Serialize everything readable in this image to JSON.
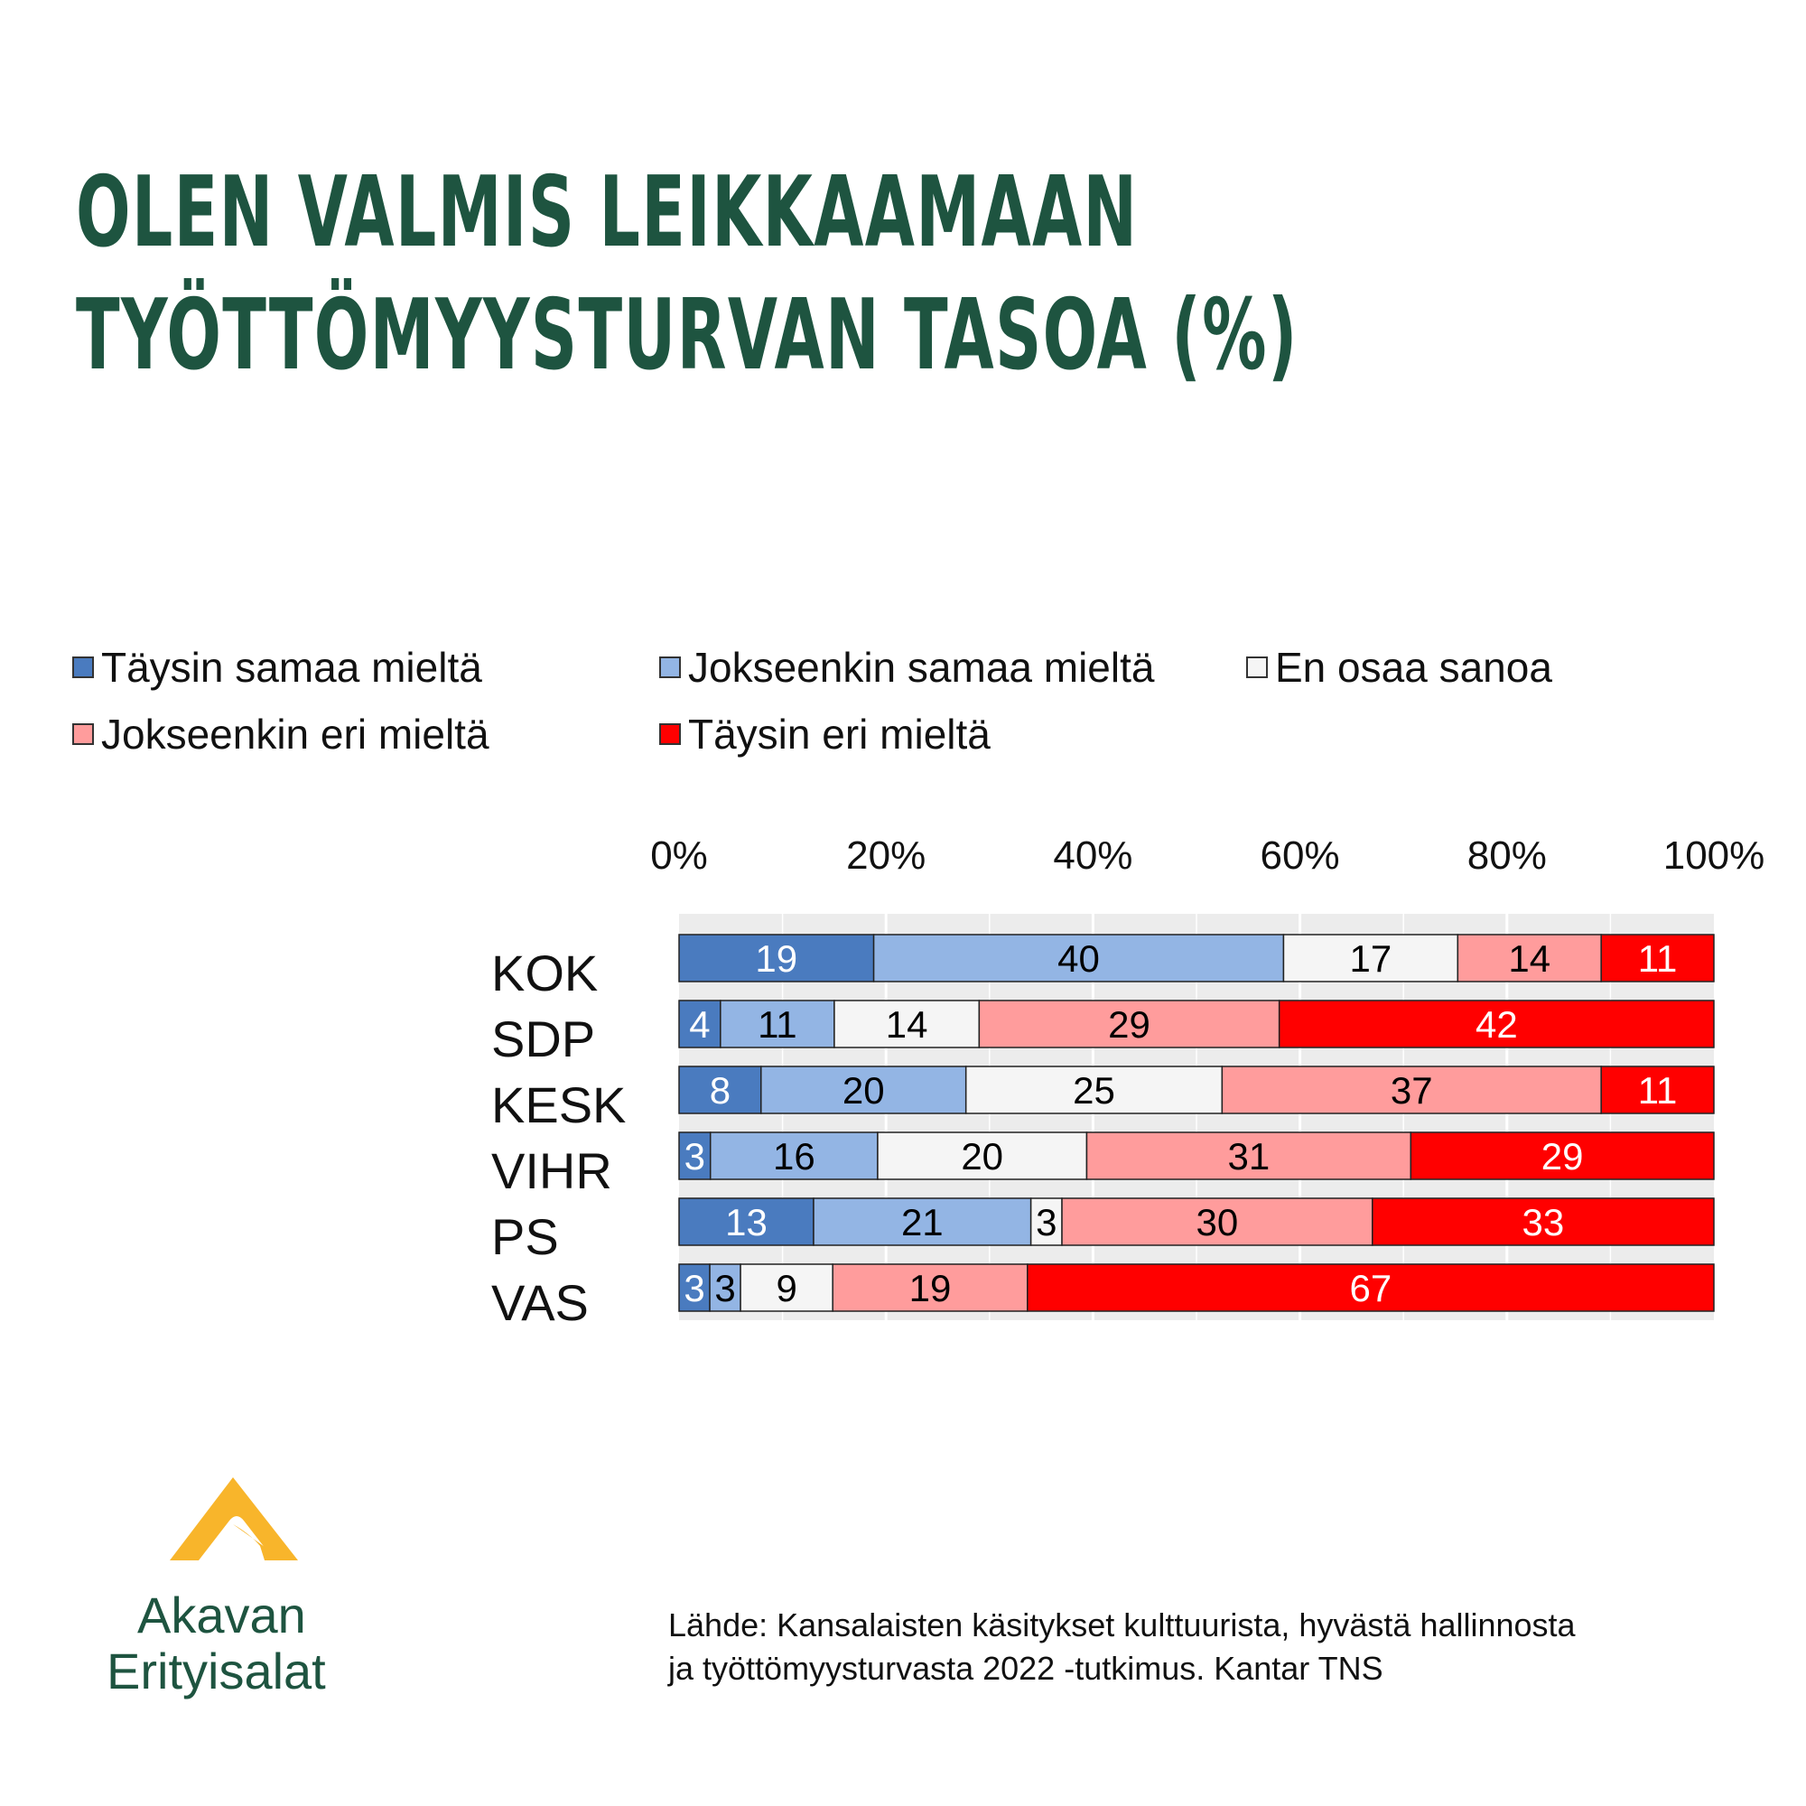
{
  "title": {
    "line1": "OLEN VALMIS LEIKKAAMAAN",
    "line2": "TYÖTTÖMYYSTURVAN TASOA (%)"
  },
  "colors": {
    "title": "#1e5440",
    "taysin_samaa": "#4a7bbf",
    "jokseenkin_samaa": "#93b5e4",
    "en_osaa": "#f5f5f5",
    "jokseenkin_eri": "#ff9c9c",
    "taysin_eri": "#ff0000",
    "logo_mark": "#f8b52b"
  },
  "legend": [
    {
      "label": "Täysin samaa mieltä",
      "color": "#4a7bbf"
    },
    {
      "label": "Jokseenkin samaa mieltä",
      "color": "#93b5e4"
    },
    {
      "label": "En osaa sanoa",
      "color": "#f5f5f5"
    },
    {
      "label": "Jokseenkin eri mieltä",
      "color": "#ff9c9c"
    },
    {
      "label": "Täysin eri mieltä",
      "color": "#ff0000"
    }
  ],
  "chart_data": {
    "type": "bar",
    "orientation": "horizontal",
    "stacked": true,
    "percent_stacked": true,
    "categories": [
      "KOK",
      "SDP",
      "KESK",
      "VIHR",
      "PS",
      "VAS"
    ],
    "series": [
      {
        "name": "Täysin samaa mieltä",
        "values": [
          19,
          4,
          8,
          3,
          13,
          3
        ],
        "label_color": "#ffffff"
      },
      {
        "name": "Jokseenkin samaa mieltä",
        "values": [
          40,
          11,
          20,
          16,
          21,
          3
        ],
        "label_color": "#000000"
      },
      {
        "name": "En osaa sanoa",
        "values": [
          17,
          14,
          25,
          20,
          3,
          9
        ],
        "label_color": "#000000"
      },
      {
        "name": "Jokseenkin eri mieltä",
        "values": [
          14,
          29,
          37,
          31,
          30,
          19
        ],
        "label_color": "#000000"
      },
      {
        "name": "Täysin eri mieltä",
        "values": [
          11,
          42,
          11,
          29,
          33,
          67
        ],
        "label_color": "#ffffff"
      }
    ],
    "x_ticks": [
      "0%",
      "20%",
      "40%",
      "60%",
      "80%",
      "100%"
    ],
    "xlim": [
      0,
      100
    ],
    "axis_position": "top",
    "legend_position": "top",
    "grid": true,
    "data_labels": true
  },
  "source": {
    "line1": "Lähde: Kansalaisten käsitykset kulttuurista, hyvästä hallinnosta",
    "line2": "ja työttömyysturvasta 2022 -tutkimus. Kantar TNS"
  },
  "logo": {
    "line1": "Akavan",
    "line2": "Erityisalat"
  }
}
